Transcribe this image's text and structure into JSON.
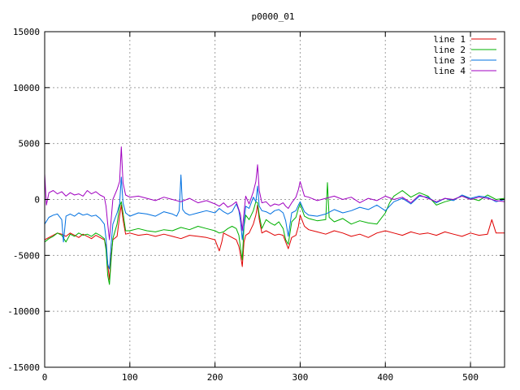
{
  "chart_data": {
    "type": "line",
    "title": "p0000_01",
    "xlabel": "",
    "ylabel": "",
    "xlim": [
      0,
      540
    ],
    "ylim": [
      -15000,
      15000
    ],
    "xticks": [
      0,
      100,
      200,
      300,
      400,
      500
    ],
    "yticks": [
      -15000,
      -10000,
      -5000,
      0,
      5000,
      10000,
      15000
    ],
    "grid": true,
    "legend": "top-right",
    "series": [
      {
        "name": "line 1",
        "color": "#e00000",
        "x": [
          0,
          5,
          10,
          15,
          20,
          25,
          30,
          35,
          40,
          45,
          50,
          55,
          60,
          65,
          70,
          72,
          74,
          76,
          78,
          80,
          85,
          88,
          90,
          92,
          95,
          100,
          110,
          120,
          130,
          140,
          150,
          160,
          170,
          180,
          190,
          200,
          205,
          208,
          210,
          215,
          220,
          225,
          228,
          230,
          232,
          234,
          236,
          240,
          245,
          248,
          250,
          252,
          255,
          260,
          265,
          270,
          275,
          280,
          283,
          286,
          290,
          295,
          298,
          300,
          305,
          310,
          320,
          330,
          340,
          350,
          360,
          370,
          380,
          390,
          400,
          410,
          420,
          430,
          440,
          450,
          460,
          470,
          480,
          490,
          500,
          510,
          520,
          525,
          530,
          540
        ],
        "y": [
          -3600,
          -3400,
          -3200,
          -3000,
          -3100,
          -3300,
          -3000,
          -3200,
          -3400,
          -3100,
          -3300,
          -3500,
          -3200,
          -3400,
          -3600,
          -4200,
          -5800,
          -7200,
          -5000,
          -3600,
          -3300,
          -1500,
          -500,
          -1800,
          -3100,
          -3000,
          -3200,
          -3100,
          -3300,
          -3100,
          -3300,
          -3500,
          -3200,
          -3300,
          -3400,
          -3600,
          -4600,
          -3800,
          -3000,
          -3200,
          -3400,
          -3600,
          -4200,
          -5000,
          -6000,
          -3800,
          -3200,
          -3000,
          -2200,
          -1400,
          -500,
          -1800,
          -3000,
          -2800,
          -3000,
          -3200,
          -3100,
          -3200,
          -3800,
          -4400,
          -3400,
          -3200,
          -2400,
          -1400,
          -2400,
          -2700,
          -2900,
          -3100,
          -2800,
          -3000,
          -3300,
          -3100,
          -3400,
          -3000,
          -2800,
          -3000,
          -3200,
          -2900,
          -3100,
          -3000,
          -3200,
          -2900,
          -3100,
          -3300,
          -3000,
          -3200,
          -3100,
          -1800,
          -3000,
          -3000
        ]
      },
      {
        "name": "line 2",
        "color": "#00b000",
        "x": [
          0,
          5,
          10,
          15,
          20,
          25,
          30,
          35,
          40,
          45,
          50,
          55,
          60,
          65,
          70,
          72,
          74,
          76,
          78,
          80,
          85,
          88,
          90,
          92,
          95,
          100,
          110,
          120,
          130,
          140,
          150,
          160,
          170,
          180,
          190,
          200,
          205,
          210,
          215,
          220,
          225,
          228,
          230,
          232,
          234,
          236,
          240,
          245,
          248,
          250,
          252,
          255,
          260,
          265,
          270,
          275,
          280,
          283,
          286,
          290,
          295,
          298,
          300,
          305,
          310,
          320,
          330,
          332,
          334,
          340,
          350,
          360,
          370,
          380,
          390,
          395,
          400,
          405,
          410,
          420,
          430,
          440,
          450,
          460,
          470,
          480,
          490,
          500,
          510,
          520,
          530,
          540
        ],
        "y": [
          -3800,
          -3500,
          -3300,
          -3000,
          -3200,
          -3800,
          -3100,
          -3300,
          -3000,
          -3200,
          -3100,
          -3300,
          -3000,
          -3200,
          -3500,
          -4500,
          -6800,
          -7600,
          -5400,
          -3500,
          -2200,
          -600,
          -200,
          -1200,
          -2800,
          -2800,
          -2600,
          -2800,
          -2900,
          -2700,
          -2800,
          -2500,
          -2700,
          -2400,
          -2600,
          -2800,
          -3000,
          -2900,
          -2600,
          -2400,
          -2600,
          -3200,
          -4400,
          -5400,
          -2400,
          -1400,
          -1800,
          -1000,
          -200,
          -300,
          -1400,
          -2600,
          -1800,
          -2100,
          -2300,
          -2000,
          -2600,
          -3600,
          -4000,
          -2000,
          -1600,
          -800,
          -400,
          -1500,
          -1700,
          -1900,
          -1800,
          1500,
          -1600,
          -2000,
          -1700,
          -2200,
          -1900,
          -2100,
          -2200,
          -1700,
          -1200,
          -300,
          300,
          800,
          200,
          600,
          300,
          -500,
          -200,
          0,
          300,
          100,
          -100,
          400,
          0,
          100
        ]
      },
      {
        "name": "line 3",
        "color": "#0070e0",
        "x": [
          0,
          5,
          10,
          15,
          20,
          22,
          25,
          30,
          35,
          40,
          45,
          50,
          55,
          60,
          65,
          70,
          72,
          74,
          76,
          78,
          80,
          85,
          88,
          90,
          92,
          95,
          100,
          110,
          120,
          130,
          140,
          150,
          155,
          158,
          160,
          162,
          165,
          170,
          180,
          190,
          200,
          205,
          210,
          215,
          220,
          225,
          228,
          230,
          232,
          234,
          236,
          240,
          245,
          248,
          250,
          252,
          255,
          260,
          265,
          270,
          275,
          280,
          283,
          286,
          290,
          295,
          298,
          300,
          305,
          310,
          320,
          330,
          340,
          350,
          360,
          370,
          380,
          390,
          400,
          410,
          420,
          430,
          440,
          450,
          460,
          470,
          480,
          490,
          500,
          510,
          520,
          530,
          540
        ],
        "y": [
          -2200,
          -1600,
          -1400,
          -1300,
          -1800,
          -3800,
          -1500,
          -1300,
          -1500,
          -1200,
          -1400,
          -1300,
          -1500,
          -1400,
          -1700,
          -2200,
          -3500,
          -5800,
          -6200,
          -4000,
          -2200,
          -1200,
          -400,
          2000,
          -300,
          -1200,
          -1500,
          -1200,
          -1300,
          -1500,
          -1100,
          -1300,
          -1500,
          -1000,
          2200,
          -900,
          -1200,
          -1400,
          -1200,
          -1000,
          -1200,
          -800,
          -1100,
          -1300,
          -1100,
          -400,
          -1000,
          -2000,
          -3600,
          -2200,
          -600,
          -800,
          200,
          -200,
          1200,
          -600,
          -1000,
          -1100,
          -1300,
          -1000,
          -900,
          -1200,
          -1900,
          -3300,
          -1200,
          -1000,
          -500,
          -200,
          -1100,
          -1400,
          -1500,
          -1300,
          -900,
          -1200,
          -1000,
          -700,
          -900,
          -500,
          -1000,
          -200,
          100,
          -400,
          300,
          200,
          -300,
          100,
          -100,
          400,
          100,
          300,
          200,
          -200,
          0
        ]
      },
      {
        "name": "line 4",
        "color": "#a000c0",
        "x": [
          0,
          2,
          5,
          10,
          15,
          20,
          25,
          30,
          35,
          40,
          45,
          50,
          55,
          60,
          65,
          70,
          72,
          74,
          76,
          78,
          80,
          85,
          88,
          90,
          92,
          95,
          100,
          110,
          120,
          130,
          140,
          150,
          160,
          170,
          180,
          190,
          200,
          205,
          210,
          215,
          220,
          225,
          228,
          230,
          232,
          234,
          236,
          240,
          245,
          248,
          250,
          252,
          255,
          260,
          265,
          270,
          275,
          280,
          283,
          286,
          290,
          295,
          298,
          300,
          305,
          310,
          320,
          330,
          340,
          350,
          360,
          370,
          380,
          390,
          400,
          410,
          420,
          430,
          440,
          450,
          460,
          470,
          480,
          490,
          500,
          510,
          520,
          530,
          540
        ],
        "y": [
          2300,
          -500,
          600,
          800,
          500,
          700,
          300,
          600,
          400,
          500,
          300,
          800,
          500,
          700,
          400,
          200,
          -600,
          -2200,
          -3600,
          -1800,
          0,
          900,
          1600,
          4700,
          1500,
          400,
          200,
          300,
          100,
          -100,
          200,
          0,
          -200,
          100,
          -300,
          -100,
          -400,
          -600,
          -300,
          -700,
          -500,
          -200,
          -900,
          -1400,
          -2800,
          -1200,
          300,
          -400,
          700,
          1600,
          3100,
          800,
          -300,
          -200,
          -600,
          -400,
          -500,
          -300,
          -600,
          -800,
          -300,
          200,
          900,
          1600,
          300,
          200,
          -100,
          100,
          300,
          0,
          200,
          -300,
          100,
          -100,
          300,
          0,
          200,
          -300,
          400,
          100,
          -200,
          100,
          0,
          300,
          0,
          200,
          100,
          -100,
          -200
        ]
      }
    ]
  }
}
